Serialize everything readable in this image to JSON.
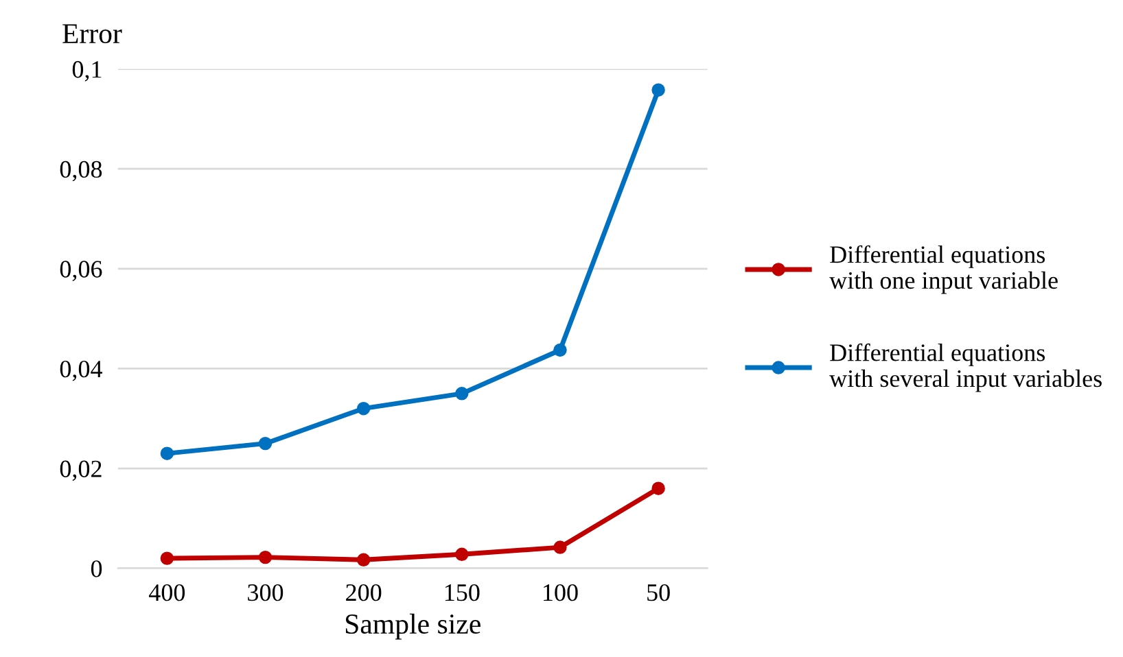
{
  "chart_data": {
    "type": "line",
    "ylabel": "Error",
    "xlabel": "Sample size",
    "categories": [
      "400",
      "300",
      "200",
      "150",
      "100",
      "50"
    ],
    "series": [
      {
        "name": "Differential equations\nwith one input variable",
        "color": "#c00000",
        "values": [
          0.002,
          0.0022,
          0.0017,
          0.0028,
          0.0042,
          0.016
        ]
      },
      {
        "name": "Differential equations\nwith several input variables",
        "color": "#0070c0",
        "values": [
          0.023,
          0.025,
          0.032,
          0.035,
          0.0437,
          0.0958
        ]
      }
    ],
    "ylim": [
      0,
      0.1
    ],
    "yticks": [
      0,
      {
        "value": 0.02,
        "label": "0,02"
      },
      {
        "value": 0.04,
        "label": "0,04"
      },
      {
        "value": 0.06,
        "label": "0,06"
      },
      {
        "value": 0.08,
        "label": "0,08"
      },
      {
        "value": 0.1,
        "label": "0,1"
      }
    ],
    "grid": "y",
    "legend": "right",
    "marker": "circle",
    "line_style": "solid"
  }
}
